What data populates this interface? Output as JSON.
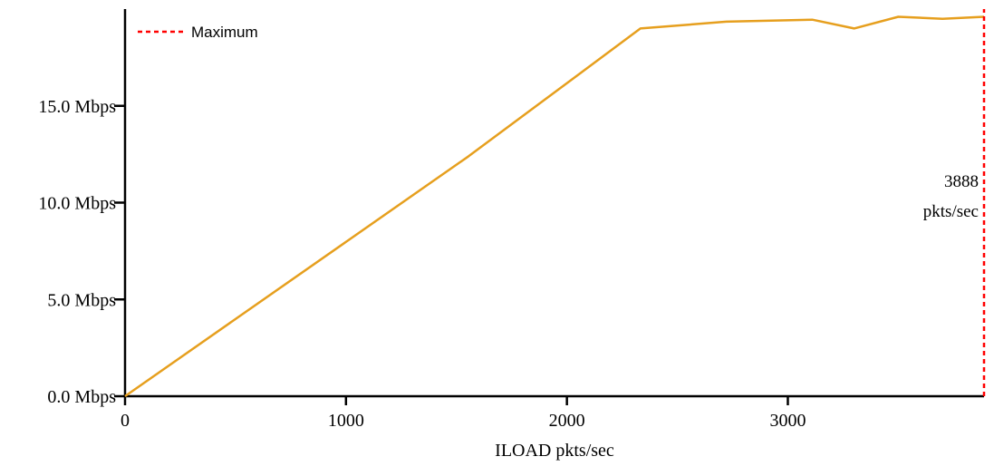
{
  "chart_data": {
    "type": "line",
    "xlabel": "ILOAD pkts/sec",
    "ylabel": "",
    "xlim": [
      0,
      3888
    ],
    "ylim": [
      0,
      20
    ],
    "x_ticks": [
      0,
      1000,
      2000,
      3000
    ],
    "x_tick_labels": [
      "0",
      "1000",
      "2000",
      "3000"
    ],
    "y_ticks": [
      0,
      5,
      10,
      15
    ],
    "y_tick_labels": [
      "0.0 Mbps",
      "5.0 Mbps",
      "10.0 Mbps",
      "15.0 Mbps"
    ],
    "grid": false,
    "legend": {
      "position": "top-left",
      "entries": [
        "Maximum"
      ]
    },
    "series": [
      {
        "color": "#e69f1e",
        "x": [
          0,
          1555,
          2333,
          2722,
          3111,
          3300,
          3500,
          3700,
          3888
        ],
        "y": [
          0,
          12.4,
          19.0,
          19.35,
          19.45,
          19.0,
          19.6,
          19.5,
          19.6
        ]
      }
    ],
    "max_line": {
      "label": "Maximum",
      "x": 3888,
      "color": "#ff0000",
      "annotation": [
        "3888",
        "pkts/sec"
      ]
    }
  }
}
